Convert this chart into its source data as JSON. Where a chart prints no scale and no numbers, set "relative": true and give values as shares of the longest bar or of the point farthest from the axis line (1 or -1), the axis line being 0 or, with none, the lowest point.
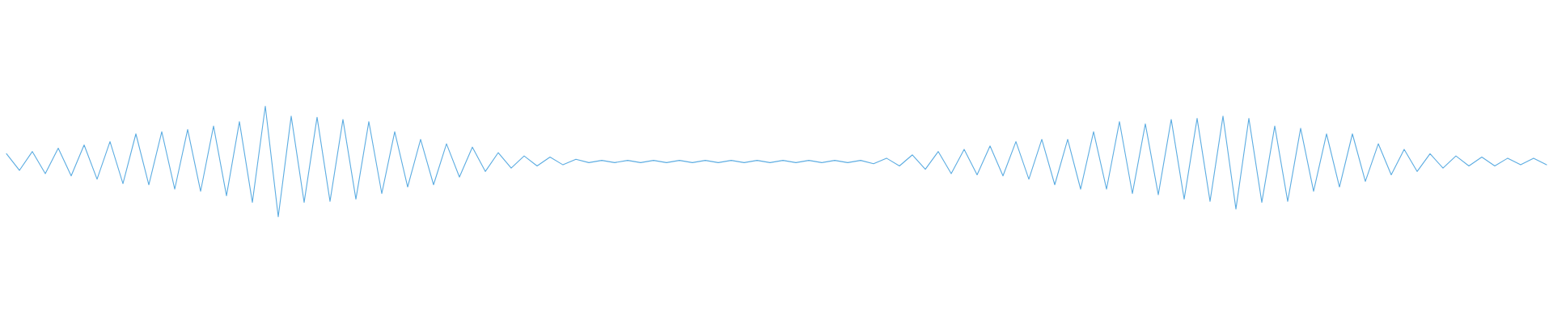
{
  "chart_data": {
    "type": "line",
    "relative": true,
    "categories": [
      null,
      null,
      null,
      null,
      null,
      null,
      null,
      null,
      null,
      null,
      null,
      null,
      null,
      null,
      null,
      null,
      null,
      null,
      null,
      null,
      null,
      null,
      null,
      null,
      null,
      null,
      null,
      null,
      null,
      null,
      null,
      null,
      null,
      null,
      null,
      null,
      null,
      null,
      null,
      null,
      null,
      null,
      null,
      null,
      null,
      null,
      null,
      null,
      null,
      null,
      null,
      null,
      null,
      null,
      null,
      null,
      null,
      null,
      null,
      null,
      null,
      null,
      null,
      null,
      null,
      null,
      null,
      null,
      null,
      null,
      null,
      null,
      null,
      null,
      null,
      null,
      null,
      null,
      null,
      null,
      null,
      null,
      null,
      null,
      null,
      null,
      null,
      null,
      null,
      null,
      null,
      null,
      null,
      null,
      null,
      null,
      null,
      null,
      null,
      null,
      null,
      null,
      null,
      null,
      null,
      null,
      null,
      null,
      null,
      null,
      null,
      null,
      null,
      null,
      null,
      null,
      null,
      null,
      null,
      null
    ],
    "series": [
      {
        "color": "#5dade2",
        "values": [
          0.57,
          0.42,
          0.59,
          0.39,
          0.62,
          0.37,
          0.65,
          0.34,
          0.68,
          0.3,
          0.75,
          0.29,
          0.77,
          0.25,
          0.79,
          0.23,
          0.82,
          0.19,
          0.86,
          0.13,
          1.0,
          0.0,
          0.91,
          0.13,
          0.9,
          0.14,
          0.88,
          0.16,
          0.86,
          0.21,
          0.77,
          0.27,
          0.7,
          0.29,
          0.66,
          0.36,
          0.63,
          0.41,
          0.58,
          0.44,
          0.55,
          0.46,
          0.54,
          0.47,
          0.52,
          0.49,
          0.51,
          0.49,
          0.51,
          0.49,
          0.51,
          0.49,
          0.51,
          0.49,
          0.51,
          0.49,
          0.51,
          0.49,
          0.51,
          0.49,
          0.51,
          0.49,
          0.51,
          0.49,
          0.51,
          0.49,
          0.51,
          0.48,
          0.53,
          0.46,
          0.56,
          0.43,
          0.59,
          0.39,
          0.61,
          0.38,
          0.64,
          0.37,
          0.68,
          0.34,
          0.7,
          0.29,
          0.7,
          0.25,
          0.77,
          0.25,
          0.86,
          0.21,
          0.84,
          0.2,
          0.88,
          0.16,
          0.89,
          0.14,
          0.91,
          0.07,
          0.89,
          0.13,
          0.82,
          0.14,
          0.8,
          0.23,
          0.75,
          0.27,
          0.75,
          0.32,
          0.66,
          0.38,
          0.61,
          0.41,
          0.57,
          0.44,
          0.55,
          0.46,
          0.54,
          0.46,
          0.53,
          0.47,
          0.53,
          0.47
        ]
      }
    ]
  }
}
